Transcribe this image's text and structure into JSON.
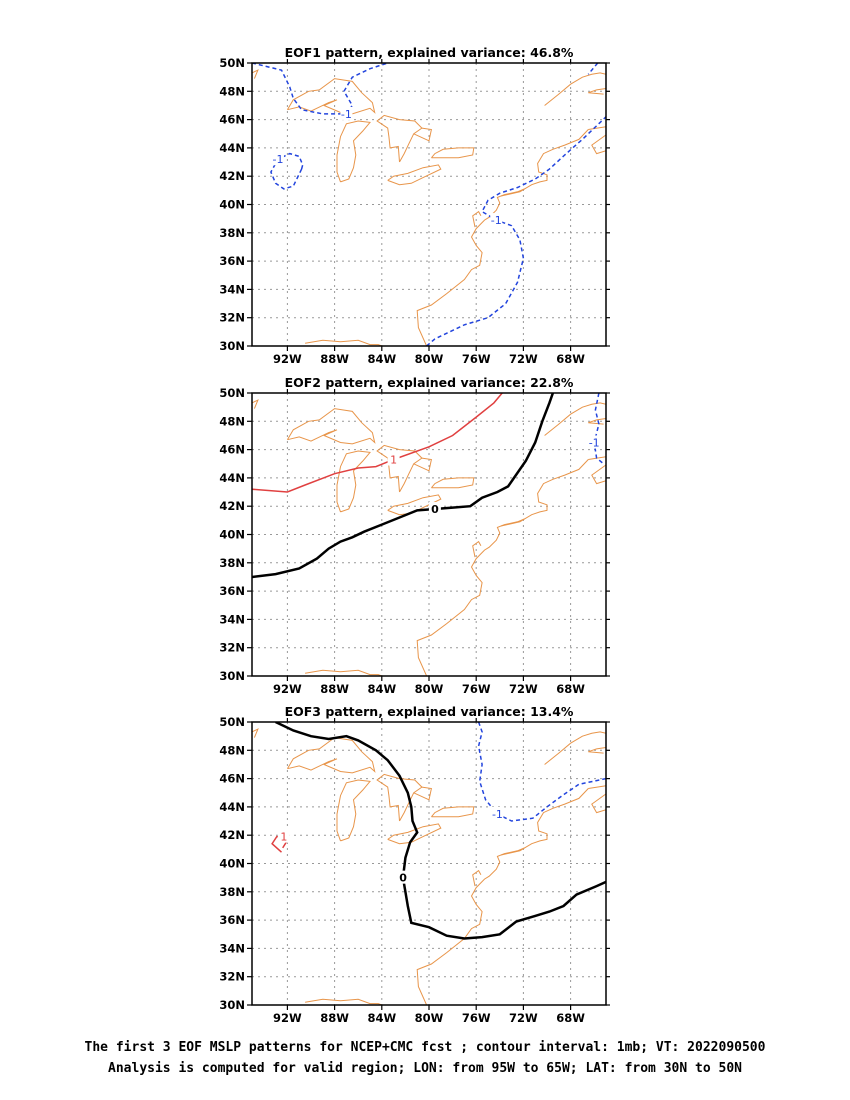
{
  "chart_data": [
    {
      "type": "contour",
      "title": "EOF1 pattern, explained variance: 46.8%",
      "x_ticks": [
        "92W",
        "88W",
        "84W",
        "80W",
        "76W",
        "72W",
        "68W"
      ],
      "y_ticks": [
        "30N",
        "32N",
        "34N",
        "36N",
        "38N",
        "40N",
        "42N",
        "44N",
        "46N",
        "48N",
        "50N"
      ],
      "xlim": [
        -95,
        -65
      ],
      "ylim": [
        30,
        50
      ],
      "grid": true,
      "contours": [
        {
          "label": "-1",
          "value": -1,
          "color": "#2244dd",
          "style": "dashed",
          "points": [
            [
              -95,
              50
            ],
            [
              -92.5,
              49.5
            ],
            [
              -91.8,
              48.3
            ],
            [
              -91.5,
              47.5
            ],
            [
              -90.8,
              46.7
            ],
            [
              -89,
              46.4
            ],
            [
              -87,
              46.4
            ],
            [
              -86.5,
              47
            ],
            [
              -87.2,
              48
            ],
            [
              -86.5,
              49
            ],
            [
              -85,
              49.6
            ],
            [
              -83.5,
              50
            ]
          ]
        },
        {
          "label": "-1",
          "value": -1,
          "color": "#2244dd",
          "style": "dashed",
          "points": [
            [
              -90.8,
              42.5
            ],
            [
              -91.5,
              41.3
            ],
            [
              -92.3,
              41.1
            ],
            [
              -93,
              41.5
            ],
            [
              -93.4,
              42.3
            ],
            [
              -92.8,
              43.2
            ],
            [
              -91.8,
              43.6
            ],
            [
              -91,
              43.4
            ],
            [
              -90.7,
              42.8
            ],
            [
              -90.8,
              42.5
            ]
          ]
        },
        {
          "label": "-1",
          "value": -1,
          "color": "#2244dd",
          "style": "dashed",
          "points": [
            [
              -80.2,
              30
            ],
            [
              -79.5,
              30.5
            ],
            [
              -77,
              31.5
            ],
            [
              -75,
              32
            ],
            [
              -73.5,
              33
            ],
            [
              -72.5,
              34.5
            ],
            [
              -72,
              36.2
            ],
            [
              -72.3,
              37.5
            ],
            [
              -73,
              38.5
            ],
            [
              -74.3,
              38.9
            ],
            [
              -75.5,
              39.5
            ],
            [
              -75,
              40.3
            ],
            [
              -74,
              40.8
            ],
            [
              -72.5,
              41.2
            ],
            [
              -71,
              41.8
            ],
            [
              -69.8,
              42.5
            ],
            [
              -68.5,
              43.5
            ],
            [
              -67,
              44.6
            ],
            [
              -65,
              46.2
            ]
          ]
        },
        {
          "label": "",
          "value": -1,
          "color": "#2244dd",
          "style": "dashed",
          "points": [
            [
              -65.7,
              50
            ],
            [
              -66.5,
              49.2
            ]
          ]
        }
      ]
    },
    {
      "type": "contour",
      "title": "EOF2 pattern, explained variance: 22.8%",
      "x_ticks": [
        "92W",
        "88W",
        "84W",
        "80W",
        "76W",
        "72W",
        "68W"
      ],
      "y_ticks": [
        "30N",
        "32N",
        "34N",
        "36N",
        "38N",
        "40N",
        "42N",
        "44N",
        "46N",
        "48N",
        "50N"
      ],
      "xlim": [
        -95,
        -65
      ],
      "ylim": [
        30,
        50
      ],
      "grid": true,
      "contours": [
        {
          "label": "1",
          "value": 1,
          "color": "#e04040",
          "style": "solid",
          "points": [
            [
              -95,
              43.2
            ],
            [
              -92,
              43
            ],
            [
              -90.5,
              43.5
            ],
            [
              -88,
              44.3
            ],
            [
              -86,
              44.7
            ],
            [
              -84.5,
              44.8
            ],
            [
              -83,
              45.3
            ],
            [
              -80,
              46.2
            ],
            [
              -78,
              47
            ],
            [
              -76,
              48.3
            ],
            [
              -74.5,
              49.3
            ],
            [
              -73.8,
              50
            ]
          ]
        },
        {
          "label": "0",
          "value": 0,
          "color": "#000000",
          "style": "solid",
          "bold": true,
          "points": [
            [
              -95,
              37
            ],
            [
              -93,
              37.2
            ],
            [
              -91,
              37.6
            ],
            [
              -89.5,
              38.3
            ],
            [
              -88.5,
              39
            ],
            [
              -87.5,
              39.5
            ],
            [
              -86.5,
              39.8
            ],
            [
              -85.5,
              40.2
            ],
            [
              -84,
              40.7
            ],
            [
              -82.5,
              41.2
            ],
            [
              -81,
              41.7
            ],
            [
              -79.5,
              41.8
            ],
            [
              -78,
              41.9
            ],
            [
              -76.5,
              42
            ],
            [
              -75.5,
              42.6
            ],
            [
              -74.2,
              43
            ],
            [
              -73.3,
              43.4
            ],
            [
              -72.8,
              44
            ],
            [
              -71.8,
              45.2
            ],
            [
              -71,
              46.5
            ],
            [
              -70.4,
              48
            ],
            [
              -69.8,
              49.3
            ],
            [
              -69.5,
              50
            ]
          ]
        },
        {
          "label": "-1",
          "value": -1,
          "color": "#2244dd",
          "style": "dashed",
          "points": [
            [
              -65.6,
              50
            ],
            [
              -65.9,
              48.8
            ],
            [
              -65.6,
              47.8
            ],
            [
              -66,
              46.5
            ],
            [
              -65.8,
              45.4
            ],
            [
              -65.2,
              45
            ]
          ]
        }
      ]
    },
    {
      "type": "contour",
      "title": "EOF3 pattern, explained variance: 13.4%",
      "x_ticks": [
        "92W",
        "88W",
        "84W",
        "80W",
        "76W",
        "72W",
        "68W"
      ],
      "y_ticks": [
        "30N",
        "32N",
        "34N",
        "36N",
        "38N",
        "40N",
        "42N",
        "44N",
        "46N",
        "48N",
        "50N"
      ],
      "xlim": [
        -95,
        -65
      ],
      "ylim": [
        30,
        50
      ],
      "grid": true,
      "contours": [
        {
          "label": "0",
          "value": 0,
          "color": "#000000",
          "style": "solid",
          "bold": true,
          "points": [
            [
              -93,
              50
            ],
            [
              -91.5,
              49.4
            ],
            [
              -90,
              49
            ],
            [
              -88.5,
              48.8
            ],
            [
              -87,
              49
            ],
            [
              -86,
              48.7
            ],
            [
              -84.5,
              48
            ],
            [
              -83.5,
              47.3
            ],
            [
              -82.5,
              46.2
            ],
            [
              -81.8,
              45
            ],
            [
              -81.5,
              44
            ],
            [
              -81.4,
              43
            ],
            [
              -81,
              42.2
            ],
            [
              -81.6,
              41.5
            ],
            [
              -82,
              40.4
            ],
            [
              -82.2,
              39
            ],
            [
              -82,
              38
            ],
            [
              -81.8,
              37
            ],
            [
              -81.5,
              35.8
            ],
            [
              -80,
              35.5
            ],
            [
              -78.5,
              34.9
            ],
            [
              -77,
              34.7
            ],
            [
              -75.5,
              34.8
            ],
            [
              -74,
              35
            ],
            [
              -72.6,
              35.9
            ],
            [
              -71,
              36.3
            ],
            [
              -69.8,
              36.6
            ],
            [
              -68.6,
              37
            ],
            [
              -67.5,
              37.8
            ],
            [
              -65.8,
              38.4
            ],
            [
              -65,
              38.7
            ]
          ]
        },
        {
          "label": "1",
          "value": 1,
          "color": "#e04040",
          "style": "solid",
          "points": [
            [
              -92.5,
              40.8
            ],
            [
              -93.3,
              41.4
            ],
            [
              -92.9,
              41.9
            ],
            [
              -92.3,
              41.9
            ],
            [
              -92.1,
              41.5
            ],
            [
              -92.4,
              41.1
            ]
          ]
        },
        {
          "label": "-1",
          "value": -1,
          "color": "#2244dd",
          "style": "dashed",
          "points": [
            [
              -75.8,
              50
            ],
            [
              -75.5,
              49.3
            ],
            [
              -75.8,
              48.3
            ],
            [
              -75.5,
              47
            ],
            [
              -75.7,
              45.8
            ],
            [
              -75.2,
              44.5
            ],
            [
              -74.2,
              43.5
            ],
            [
              -73,
              43
            ],
            [
              -71.2,
              43.2
            ],
            [
              -70,
              44
            ],
            [
              -68.7,
              44.8
            ],
            [
              -67.3,
              45.6
            ],
            [
              -65,
              46
            ]
          ]
        }
      ]
    }
  ],
  "coastline_color": "#e8954a",
  "caption": {
    "line1": "The first 3 EOF MSLP patterns for NCEP+CMC fcst ; contour interval: 1mb; VT: 2022090500",
    "line2": "Analysis is computed for valid region; LON: from 95W to 65W; LAT: from 30N to 50N"
  }
}
